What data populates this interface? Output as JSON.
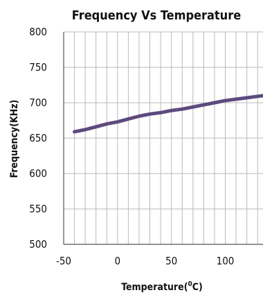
{
  "chart_data": {
    "type": "line",
    "title": "Frequency Vs  Temperature",
    "xlabel_prefix": "Temperature(",
    "xlabel_sup": "0",
    "xlabel_suffix": "C)",
    "ylabel": "Frequency(KHz)",
    "xlim": [
      -50,
      135
    ],
    "ylim": [
      500,
      800
    ],
    "x_ticks": [
      -50,
      0,
      50,
      100
    ],
    "x_tick_labels": [
      "-50",
      "0",
      "50",
      "100"
    ],
    "y_ticks": [
      500,
      550,
      600,
      650,
      700,
      750,
      800
    ],
    "y_tick_labels": [
      "500",
      "550",
      "600",
      "650",
      "700",
      "750",
      "800"
    ],
    "grid": true,
    "line_color": "#5e4a7e",
    "grid_color": "#b9b9b9",
    "series": [
      {
        "x": [
          -40,
          -30,
          -20,
          -10,
          0,
          10,
          20,
          30,
          40,
          50,
          60,
          70,
          80,
          90,
          100,
          110,
          120,
          130,
          135
        ],
        "y": [
          659,
          662,
          666,
          670,
          673,
          677,
          681,
          684,
          686,
          689,
          691,
          694,
          697,
          700,
          703,
          705,
          707,
          709,
          710
        ]
      }
    ]
  }
}
